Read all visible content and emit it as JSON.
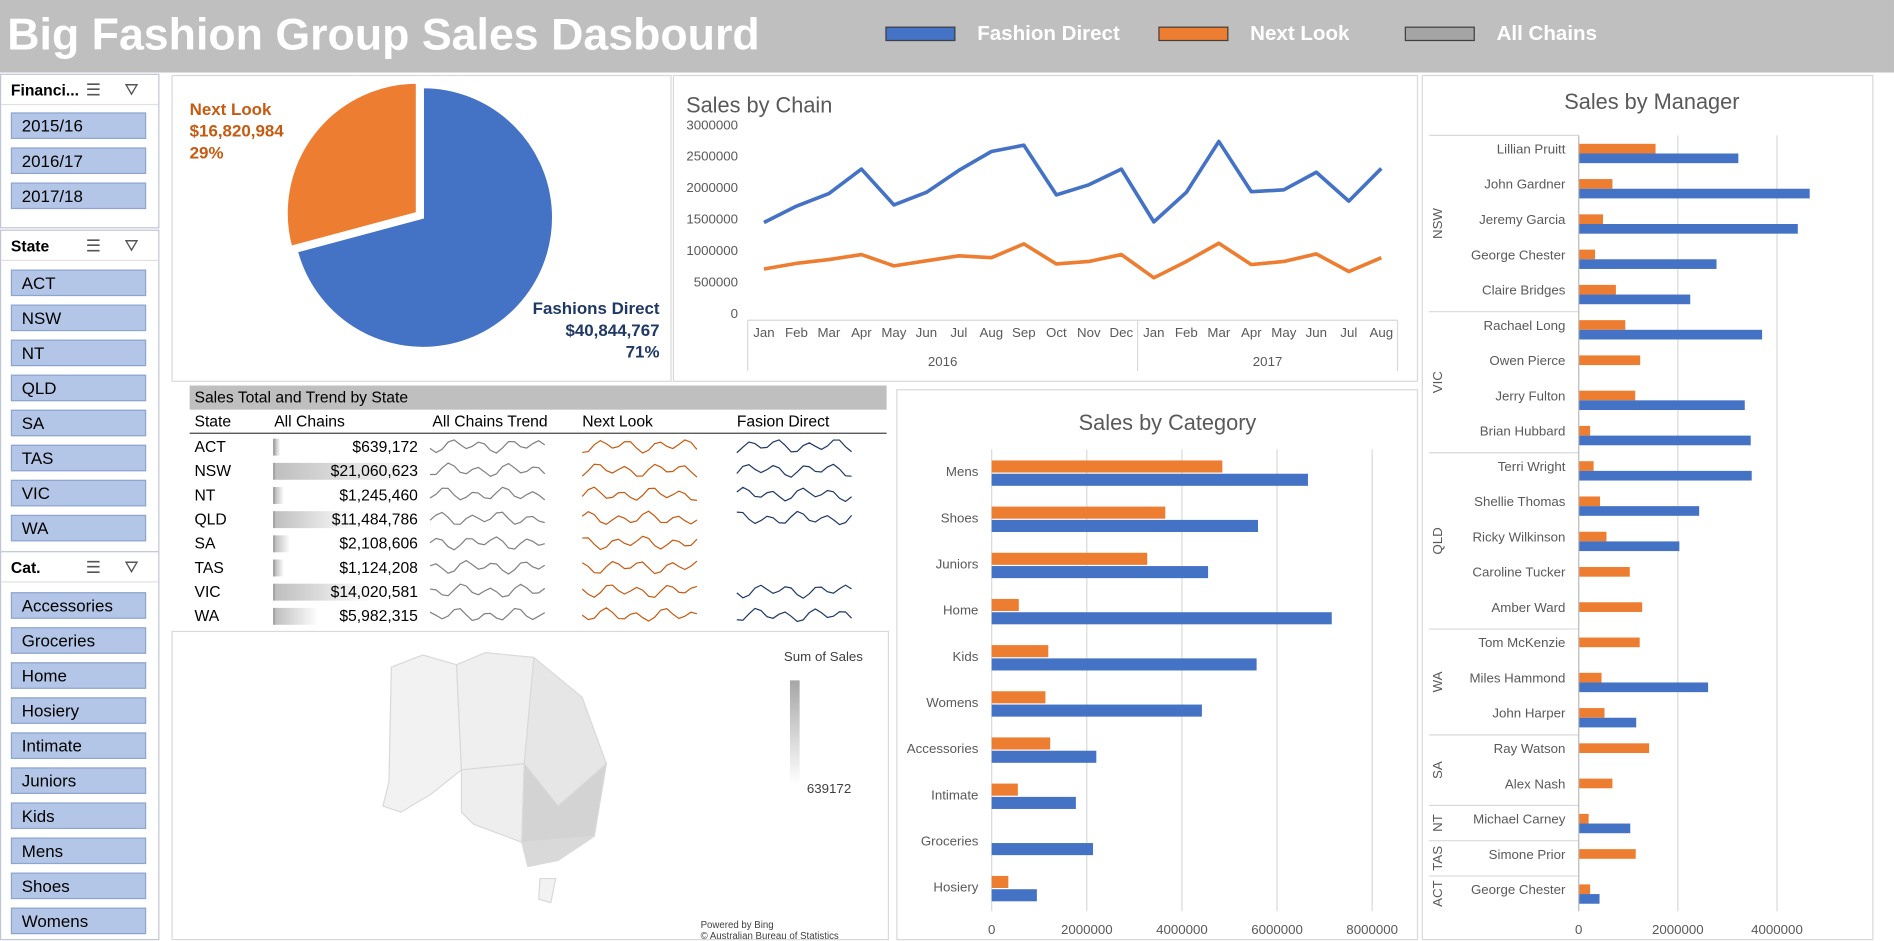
{
  "header": {
    "title": "Big Fashion Group Sales Dasbourd",
    "legend": [
      {
        "label": "Fashion Direct",
        "color": "#4472c4"
      },
      {
        "label": "Next Look",
        "color": "#ed7d31"
      },
      {
        "label": "All Chains",
        "color": "#a5a5a5"
      }
    ]
  },
  "slicers": {
    "financial": {
      "title": "Financi...",
      "items": [
        "2015/16",
        "2016/17",
        "2017/18"
      ]
    },
    "state": {
      "title": "State",
      "items": [
        "ACT",
        "NSW",
        "NT",
        "QLD",
        "SA",
        "TAS",
        "VIC",
        "WA"
      ]
    },
    "category": {
      "title": "Cat.",
      "items": [
        "Accessories",
        "Groceries",
        "Home",
        "Hosiery",
        "Intimate",
        "Juniors",
        "Kids",
        "Mens",
        "Shoes",
        "Womens"
      ]
    }
  },
  "pie": {
    "next_look": {
      "name": "Next Look",
      "value": "$16,820,984",
      "pct": "29%"
    },
    "fashions_direct": {
      "name": "Fashions Direct",
      "value": "$40,844,767",
      "pct": "71%"
    }
  },
  "table": {
    "title": "Sales Total and Trend by State",
    "headers": [
      "State",
      "All Chains",
      "All Chains Trend",
      "Next Look",
      "Fasion Direct"
    ],
    "rows": [
      {
        "state": "ACT",
        "value": "$639,172",
        "amount": 639172
      },
      {
        "state": "NSW",
        "value": "$21,060,623",
        "amount": 21060623
      },
      {
        "state": "NT",
        "value": "$1,245,460",
        "amount": 1245460
      },
      {
        "state": "QLD",
        "value": "$11,484,786",
        "amount": 11484786
      },
      {
        "state": "SA",
        "value": "$2,108,606",
        "amount": 2108606
      },
      {
        "state": "TAS",
        "value": "$1,124,208",
        "amount": 1124208
      },
      {
        "state": "VIC",
        "value": "$14,020,581",
        "amount": 14020581
      },
      {
        "state": "WA",
        "value": "$5,982,315",
        "amount": 5982315
      }
    ]
  },
  "map": {
    "legend_title": "Sum of Sales",
    "min_label": "639172",
    "powered": "Powered by Bing",
    "copyright": "© Australian Bureau of Statistics"
  },
  "chart_data": [
    {
      "type": "pie",
      "title": "",
      "categories": [
        "Fashions Direct",
        "Next Look"
      ],
      "values": [
        40844767,
        16820984
      ],
      "colors": [
        "#4472c4",
        "#ed7d31"
      ]
    },
    {
      "type": "line",
      "title": "Sales by Chain",
      "categories": [
        "Jan",
        "Feb",
        "Mar",
        "Apr",
        "May",
        "Jun",
        "Jul",
        "Aug",
        "Sep",
        "Oct",
        "Nov",
        "Dec",
        "Jan",
        "Feb",
        "Mar",
        "Apr",
        "May",
        "Jun",
        "Jul",
        "Aug"
      ],
      "groups": [
        {
          "label": "2016",
          "count": 12
        },
        {
          "label": "2017",
          "count": 8
        }
      ],
      "ylim": [
        0,
        3000000
      ],
      "yticks": [
        "0",
        "500000",
        "1000000",
        "1500000",
        "2000000",
        "2500000",
        "3000000"
      ],
      "series": [
        {
          "values": [
            1440000,
            1700000,
            1900000,
            2290000,
            1720000,
            1920000,
            2270000,
            2570000,
            2670000,
            1880000,
            2040000,
            2290000,
            1450000,
            1920000,
            2730000,
            1930000,
            1960000,
            2240000,
            1780000,
            2300000
          ]
        },
        {
          "values": [
            700000,
            790000,
            850000,
            930000,
            750000,
            830000,
            910000,
            880000,
            1100000,
            780000,
            820000,
            930000,
            560000,
            820000,
            1110000,
            770000,
            820000,
            940000,
            660000,
            880000
          ]
        }
      ]
    },
    {
      "type": "bar",
      "title": "Sales by Category",
      "categories": [
        "Mens",
        "Shoes",
        "Juniors",
        "Home",
        "Kids",
        "Womens",
        "Accessories",
        "Intimate",
        "Groceries",
        "Hosiery"
      ],
      "xlim": [
        0,
        8000000
      ],
      "xticks": [
        "0",
        "2000000",
        "4000000",
        "6000000",
        "8000000"
      ],
      "series": [
        {
          "values": [
            4850000,
            3650000,
            3270000,
            570000,
            1190000,
            1130000,
            1230000,
            550000,
            0,
            350000
          ]
        },
        {
          "values": [
            6650000,
            5600000,
            4550000,
            7150000,
            5570000,
            4420000,
            2200000,
            1770000,
            2130000,
            950000
          ]
        }
      ]
    },
    {
      "type": "bar",
      "title": "Sales by Manager",
      "groups": [
        {
          "label": "NSW",
          "managers": [
            "Lillian Pruitt",
            "John Gardner",
            "Jeremy Garcia",
            "George Chester",
            "Claire Bridges"
          ]
        },
        {
          "label": "VIC",
          "managers": [
            "Rachael Long",
            "Owen Pierce",
            "Jerry Fulton",
            "Brian Hubbard"
          ]
        },
        {
          "label": "QLD",
          "managers": [
            "Terri Wright",
            "Shellie Thomas",
            "Ricky Wilkinson",
            "Caroline Tucker",
            "Amber Ward"
          ]
        },
        {
          "label": "WA",
          "managers": [
            "Tom McKenzie",
            "Miles Hammond",
            "John Harper"
          ]
        },
        {
          "label": "SA",
          "managers": [
            "Ray Watson",
            "Alex Nash"
          ]
        },
        {
          "label": "NT",
          "managers": [
            "Michael Carney"
          ]
        },
        {
          "label": "TAS",
          "managers": [
            "Simone Prior"
          ]
        },
        {
          "label": "ACT",
          "managers": [
            "George Chester"
          ]
        }
      ],
      "xlim": [
        0,
        6000000
      ],
      "xticks": [
        "0",
        "2000000",
        "4000000"
      ],
      "series": [
        {
          "values": [
            1550000,
            680000,
            490000,
            330000,
            750000,
            940000,
            1240000,
            1140000,
            230000,
            300000,
            430000,
            560000,
            1030000,
            1280000,
            1230000,
            460000,
            520000,
            1420000,
            680000,
            200000,
            1150000,
            230000
          ]
        },
        {
          "values": [
            3220000,
            4660000,
            4420000,
            2780000,
            2250000,
            3700000,
            0,
            3350000,
            3470000,
            3490000,
            2430000,
            2030000,
            0,
            0,
            0,
            2610000,
            1160000,
            0,
            0,
            1040000,
            0,
            420000
          ]
        }
      ]
    }
  ]
}
